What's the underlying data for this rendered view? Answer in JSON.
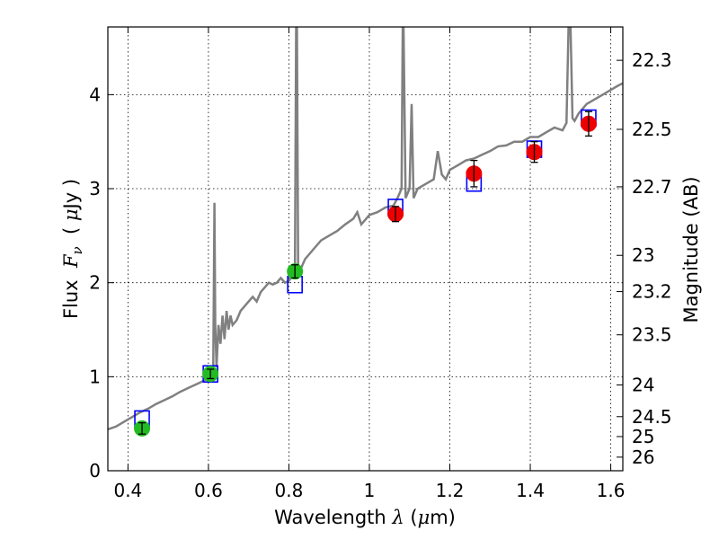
{
  "chart_data": {
    "type": "scatter",
    "xlabel": {
      "prefix": "Wavelength  ",
      "symbol": "λ",
      "unit": " (",
      "mu": "μ",
      "unit_tail": "m)"
    },
    "ylabel": {
      "prefix": "Flux  ",
      "symbol": "F",
      "sub": "ν",
      "mid": "  ( ",
      "mu": "μ",
      "tail": "Jy )"
    },
    "y2label": "Magnitude (AB)",
    "xlim": [
      0.35,
      1.63
    ],
    "ylim": [
      0,
      4.72
    ],
    "x_ticks": [
      0.4,
      0.6,
      0.8,
      1.0,
      1.2,
      1.4,
      1.6
    ],
    "x_tick_labels": [
      "0.4",
      "0.6",
      "0.8",
      "1",
      "1.2",
      "1.4",
      "1.6"
    ],
    "y_ticks": [
      0,
      1,
      2,
      3,
      4
    ],
    "y_tick_labels": [
      "0",
      "1",
      "2",
      "3",
      "4"
    ],
    "y2_ticks": [
      22.3,
      22.5,
      22.7,
      23,
      23.2,
      23.5,
      24,
      24.5,
      25,
      26
    ],
    "y2_tick_labels": [
      "22.3",
      "22.5",
      "22.7",
      "23",
      "23.2",
      "23.5",
      "24",
      "24.5",
      "25",
      "26"
    ],
    "grid": true,
    "colors": {
      "model": "#808080",
      "model_points": "#0000ff",
      "optical": "#22bb22",
      "nir": "#ee0000",
      "errorbar": "#000000"
    },
    "model_spectrum": {
      "x": [
        0.35,
        0.37,
        0.39,
        0.41,
        0.43,
        0.45,
        0.47,
        0.49,
        0.51,
        0.53,
        0.55,
        0.57,
        0.59,
        0.605,
        0.612,
        0.615,
        0.617,
        0.62,
        0.625,
        0.63,
        0.635,
        0.64,
        0.645,
        0.65,
        0.655,
        0.66,
        0.67,
        0.68,
        0.69,
        0.7,
        0.71,
        0.72,
        0.73,
        0.74,
        0.75,
        0.76,
        0.77,
        0.78,
        0.79,
        0.8,
        0.81,
        0.815,
        0.818,
        0.82,
        0.823,
        0.826,
        0.83,
        0.835,
        0.84,
        0.86,
        0.88,
        0.9,
        0.92,
        0.94,
        0.96,
        0.97,
        0.98,
        1.0,
        1.02,
        1.04,
        1.06,
        1.07,
        1.08,
        1.083,
        1.085,
        1.09,
        1.1,
        1.105,
        1.11,
        1.12,
        1.14,
        1.16,
        1.17,
        1.18,
        1.19,
        1.2,
        1.22,
        1.24,
        1.26,
        1.28,
        1.3,
        1.32,
        1.34,
        1.36,
        1.38,
        1.4,
        1.42,
        1.44,
        1.46,
        1.48,
        1.49,
        1.495,
        1.5,
        1.505,
        1.51,
        1.52,
        1.54,
        1.56,
        1.58,
        1.6,
        1.62,
        1.63
      ],
      "y": [
        0.44,
        0.47,
        0.52,
        0.57,
        0.62,
        0.66,
        0.71,
        0.75,
        0.79,
        0.84,
        0.88,
        0.92,
        0.96,
        1.02,
        1.12,
        2.85,
        1.55,
        1.1,
        1.55,
        1.35,
        1.65,
        1.4,
        1.7,
        1.5,
        1.65,
        1.55,
        1.6,
        1.7,
        1.75,
        1.8,
        1.85,
        1.8,
        1.9,
        1.95,
        2.0,
        1.98,
        2.0,
        2.05,
        2.0,
        2.02,
        2.08,
        2.2,
        4.72,
        4.72,
        2.2,
        2.1,
        2.15,
        2.2,
        2.25,
        2.35,
        2.45,
        2.5,
        2.55,
        2.62,
        2.68,
        2.75,
        2.62,
        2.72,
        2.75,
        2.8,
        2.82,
        2.9,
        3.0,
        4.72,
        4.72,
        2.9,
        3.0,
        3.9,
        2.9,
        3.0,
        3.05,
        3.1,
        3.4,
        3.15,
        3.1,
        3.2,
        3.25,
        3.3,
        3.32,
        3.36,
        3.4,
        3.45,
        3.46,
        3.5,
        3.5,
        3.55,
        3.55,
        3.6,
        3.65,
        3.62,
        3.7,
        4.72,
        4.72,
        3.75,
        3.72,
        3.8,
        3.9,
        3.95,
        4.0,
        4.05,
        4.1,
        4.12
      ]
    },
    "series": [
      {
        "kind": "model",
        "x": [
          0.435,
          0.605,
          0.815,
          1.065,
          1.26,
          1.41,
          1.545
        ],
        "y": [
          0.55,
          1.03,
          1.98,
          2.8,
          3.06,
          3.42,
          3.75
        ]
      },
      {
        "kind": "optical",
        "x": [
          0.435,
          0.605,
          0.815
        ],
        "y": [
          0.45,
          1.03,
          2.12
        ],
        "err": [
          0.06,
          0.05,
          0.07
        ]
      },
      {
        "kind": "nir",
        "x": [
          1.065,
          1.26,
          1.41,
          1.545
        ],
        "y": [
          2.73,
          3.16,
          3.39,
          3.69
        ],
        "err": [
          0.08,
          0.14,
          0.11,
          0.13
        ]
      }
    ]
  }
}
